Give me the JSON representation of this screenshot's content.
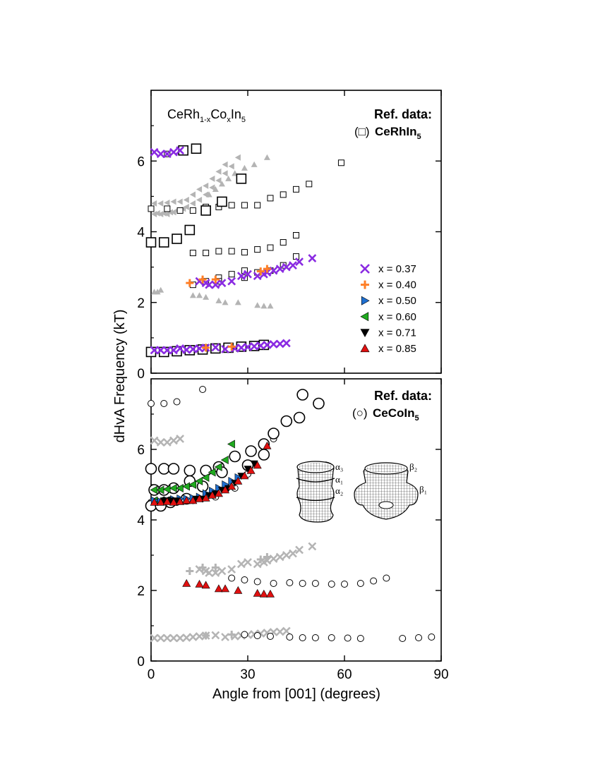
{
  "chart_data": {
    "type": "scatter",
    "xlabel": "Angle from [001] (degrees)",
    "ylabel": "dHvA Frequency (kT)",
    "xlim": [
      0,
      90
    ],
    "ylim": [
      0,
      8
    ],
    "xticks": [
      0,
      30,
      60,
      90
    ],
    "yticks": [
      0,
      2,
      4,
      6
    ],
    "colors": {
      "x037": "#8a2be2",
      "x040": "#ff7f27",
      "x050": "#1f6fd0",
      "x060": "#1faa1f",
      "x071": "#000000",
      "x085": "#e01010",
      "gray": "#b4b4b4",
      "ref": "#000000"
    },
    "legend": [
      {
        "label": "x = 0.37",
        "marker": "x",
        "color_key": "x037"
      },
      {
        "label": "x = 0.40",
        "marker": "plus",
        "color_key": "x040"
      },
      {
        "label": "x = 0.50",
        "marker": "tri-right",
        "color_key": "x050"
      },
      {
        "label": "x = 0.60",
        "marker": "tri-left",
        "color_key": "x060"
      },
      {
        "label": "x = 0.71",
        "marker": "tri-down",
        "color_key": "x071"
      },
      {
        "label": "x = 0.85",
        "marker": "tri-up",
        "color_key": "x085"
      }
    ],
    "top_panel": {
      "compound_label": {
        "base1": "CeRh",
        "sub1": "1-x",
        "base2": "Co",
        "sub2": "x",
        "base3": "In",
        "sub3": "5"
      },
      "ref_title": "Ref. data:",
      "ref_symbol": "(□)",
      "ref_compound": {
        "base": "CeRhIn",
        "sub": "5"
      },
      "ref_points_small": [
        [
          13,
          2.5
        ],
        [
          17,
          2.6
        ],
        [
          21,
          2.7
        ],
        [
          25,
          2.8
        ],
        [
          29,
          2.9
        ],
        [
          33,
          2.85
        ],
        [
          13,
          3.4
        ],
        [
          17,
          3.4
        ],
        [
          21,
          3.45
        ],
        [
          25,
          3.45
        ],
        [
          29,
          3.42
        ],
        [
          33,
          3.5
        ],
        [
          37,
          3.55
        ],
        [
          41,
          3.7
        ],
        [
          45,
          3.9
        ],
        [
          45,
          3.3
        ],
        [
          41,
          3.05
        ],
        [
          37,
          2.9
        ],
        [
          29,
          2.7
        ],
        [
          21,
          2.6
        ],
        [
          0,
          4.65
        ],
        [
          5,
          4.65
        ],
        [
          9,
          4.6
        ],
        [
          13,
          4.6
        ],
        [
          17,
          4.7
        ],
        [
          21,
          4.7
        ],
        [
          25,
          4.75
        ],
        [
          29,
          4.75
        ],
        [
          33,
          4.75
        ],
        [
          37,
          4.95
        ],
        [
          41,
          5.05
        ],
        [
          45,
          5.2
        ],
        [
          49,
          5.35
        ],
        [
          59,
          5.95
        ],
        [
          5,
          6.2
        ]
      ],
      "ref_points_large": [
        [
          0,
          0.6
        ],
        [
          4,
          0.6
        ],
        [
          8,
          0.62
        ],
        [
          12,
          0.65
        ],
        [
          16,
          0.67
        ],
        [
          20,
          0.7
        ],
        [
          24,
          0.72
        ],
        [
          28,
          0.75
        ],
        [
          32,
          0.77
        ],
        [
          35,
          0.8
        ],
        [
          0,
          3.7
        ],
        [
          4,
          3.7
        ],
        [
          8,
          3.8
        ],
        [
          12,
          4.05
        ],
        [
          17,
          4.6
        ],
        [
          22,
          4.85
        ],
        [
          28,
          5.5
        ],
        [
          10,
          6.3
        ],
        [
          14,
          6.35
        ]
      ],
      "x037": [
        [
          1,
          0.65
        ],
        [
          3,
          0.65
        ],
        [
          5,
          0.65
        ],
        [
          7,
          0.65
        ],
        [
          9,
          0.7
        ],
        [
          11,
          0.66
        ],
        [
          13,
          0.68
        ],
        [
          15,
          0.7
        ],
        [
          17,
          0.72
        ],
        [
          20,
          0.73
        ],
        [
          23,
          0.68
        ],
        [
          26,
          0.7
        ],
        [
          28,
          0.72
        ],
        [
          30,
          0.74
        ],
        [
          32,
          0.76
        ],
        [
          34,
          0.78
        ],
        [
          36,
          0.8
        ],
        [
          38,
          0.82
        ],
        [
          40,
          0.83
        ],
        [
          42,
          0.85
        ],
        [
          15,
          2.6
        ],
        [
          17,
          2.55
        ],
        [
          18,
          2.5
        ],
        [
          20,
          2.5
        ],
        [
          22,
          2.55
        ],
        [
          25,
          2.6
        ],
        [
          28,
          2.75
        ],
        [
          30,
          2.8
        ],
        [
          33,
          2.75
        ],
        [
          35,
          2.8
        ],
        [
          36,
          2.85
        ],
        [
          38,
          2.9
        ],
        [
          40,
          2.95
        ],
        [
          42,
          3.0
        ],
        [
          44,
          3.05
        ],
        [
          46,
          3.15
        ],
        [
          50,
          3.25
        ],
        [
          1,
          6.25
        ],
        [
          3,
          6.2
        ],
        [
          5,
          6.2
        ],
        [
          7,
          6.25
        ],
        [
          9,
          6.3
        ]
      ],
      "x040": [
        [
          12,
          2.55
        ],
        [
          16,
          2.65
        ],
        [
          20,
          2.65
        ],
        [
          25,
          0.75
        ],
        [
          34,
          2.88
        ],
        [
          36,
          2.95
        ],
        [
          17,
          0.72
        ]
      ],
      "gray_up": [
        [
          1,
          2.3
        ],
        [
          2,
          2.3
        ],
        [
          3,
          2.35
        ],
        [
          13,
          2.2
        ],
        [
          15,
          2.2
        ],
        [
          17,
          2.15
        ],
        [
          21,
          2.05
        ],
        [
          23,
          2.0
        ],
        [
          27,
          2.0
        ],
        [
          33,
          1.92
        ],
        [
          35,
          1.9
        ],
        [
          37,
          1.9
        ],
        [
          18,
          5.05
        ],
        [
          20,
          5.2
        ],
        [
          22,
          5.35
        ],
        [
          24,
          5.5
        ],
        [
          26,
          5.65
        ],
        [
          29,
          5.8
        ],
        [
          32,
          5.9
        ],
        [
          36,
          6.1
        ]
      ],
      "gray_left": [
        [
          1,
          4.5
        ],
        [
          2,
          4.52
        ],
        [
          3,
          4.5
        ],
        [
          4,
          4.52
        ],
        [
          5,
          4.5
        ],
        [
          6,
          4.55
        ],
        [
          7,
          4.55
        ],
        [
          8,
          4.6
        ],
        [
          9,
          4.62
        ],
        [
          10,
          4.65
        ],
        [
          11,
          4.7
        ],
        [
          13,
          4.8
        ],
        [
          15,
          4.9
        ],
        [
          17,
          5.05
        ],
        [
          19,
          5.25
        ],
        [
          21,
          5.45
        ],
        [
          23,
          5.65
        ],
        [
          25,
          5.85
        ],
        [
          27,
          6.1
        ],
        [
          1,
          4.8
        ],
        [
          3,
          4.8
        ],
        [
          5,
          4.82
        ],
        [
          7,
          4.85
        ],
        [
          9,
          4.85
        ],
        [
          11,
          4.9
        ],
        [
          13,
          5.05
        ],
        [
          15,
          5.2
        ],
        [
          17,
          5.3
        ],
        [
          19,
          5.5
        ],
        [
          21,
          5.7
        ],
        [
          23,
          5.9
        ]
      ]
    },
    "bottom_panel": {
      "ref_title": "Ref. data:",
      "ref_symbol": "(○)",
      "ref_compound": {
        "base": "CeCoIn",
        "sub": "5"
      },
      "fs_labels": {
        "a3": "α₃",
        "a1": "α₁",
        "a2": "α₂",
        "b2": "β₂",
        "b1": "β₁"
      },
      "ref_circles_small": [
        [
          0,
          7.3
        ],
        [
          4,
          7.3
        ],
        [
          8,
          7.35
        ],
        [
          16,
          7.7
        ],
        [
          0,
          4.5
        ],
        [
          2,
          4.48
        ],
        [
          4,
          4.5
        ],
        [
          6,
          4.45
        ],
        [
          8,
          4.5
        ],
        [
          13,
          4.55
        ],
        [
          20,
          4.65
        ],
        [
          26,
          4.9
        ],
        [
          30,
          5.3
        ],
        [
          38,
          6.3
        ],
        [
          29,
          2.3
        ],
        [
          33,
          2.25
        ],
        [
          38,
          2.2
        ],
        [
          43,
          2.22
        ],
        [
          47,
          2.2
        ],
        [
          51,
          2.2
        ],
        [
          56,
          2.18
        ],
        [
          60,
          2.18
        ],
        [
          65,
          2.2
        ],
        [
          69,
          2.27
        ],
        [
          73,
          2.35
        ],
        [
          29,
          0.75
        ],
        [
          33,
          0.72
        ],
        [
          37,
          0.7
        ],
        [
          43,
          0.68
        ],
        [
          47,
          0.66
        ],
        [
          51,
          0.66
        ],
        [
          56,
          0.66
        ],
        [
          61,
          0.65
        ],
        [
          65,
          0.64
        ],
        [
          78,
          0.64
        ],
        [
          83,
          0.66
        ],
        [
          87,
          0.68
        ],
        [
          25,
          2.35
        ]
      ],
      "ref_circles_large": [
        [
          0,
          5.45
        ],
        [
          4,
          5.45
        ],
        [
          7,
          5.45
        ],
        [
          12,
          5.4
        ],
        [
          17,
          5.4
        ],
        [
          21,
          5.5
        ],
        [
          26,
          5.8
        ],
        [
          31,
          5.95
        ],
        [
          35,
          6.15
        ],
        [
          38,
          6.45
        ],
        [
          42,
          6.8
        ],
        [
          46,
          6.9
        ],
        [
          47,
          7.55
        ],
        [
          52,
          7.3
        ],
        [
          1,
          4.85
        ],
        [
          4,
          4.85
        ],
        [
          7,
          4.9
        ],
        [
          12,
          5.1
        ],
        [
          0,
          4.4
        ],
        [
          3,
          4.4
        ],
        [
          6,
          4.5
        ],
        [
          11,
          4.6
        ],
        [
          16,
          4.95
        ],
        [
          22,
          5.35
        ],
        [
          30,
          5.55
        ],
        [
          35,
          5.85
        ]
      ],
      "x060": [
        [
          1,
          4.85
        ],
        [
          3,
          4.85
        ],
        [
          5,
          4.87
        ],
        [
          7,
          4.9
        ],
        [
          9,
          4.9
        ],
        [
          11,
          4.95
        ],
        [
          13,
          5.0
        ],
        [
          15,
          5.1
        ],
        [
          17,
          5.2
        ],
        [
          19,
          5.35
        ],
        [
          21,
          5.5
        ],
        [
          23,
          5.7
        ],
        [
          25,
          6.15
        ],
        [
          5,
          4.55
        ],
        [
          3,
          4.55
        ],
        [
          1,
          4.55
        ]
      ],
      "x050": [
        [
          1,
          4.55
        ],
        [
          3,
          4.52
        ],
        [
          5,
          4.55
        ],
        [
          7,
          4.58
        ],
        [
          9,
          4.6
        ],
        [
          11,
          4.6
        ],
        [
          13,
          4.62
        ],
        [
          15,
          4.65
        ],
        [
          17,
          4.75
        ],
        [
          19,
          4.82
        ],
        [
          21,
          4.9
        ],
        [
          23,
          5.0
        ],
        [
          25,
          5.1
        ],
        [
          27,
          5.2
        ]
      ],
      "x071": [
        [
          4,
          4.55
        ],
        [
          6,
          4.55
        ],
        [
          8,
          4.55
        ],
        [
          14,
          4.6
        ],
        [
          16,
          4.6
        ],
        [
          18,
          4.7
        ],
        [
          20,
          4.75
        ],
        [
          22,
          4.85
        ],
        [
          24,
          4.9
        ],
        [
          26,
          5.05
        ],
        [
          28,
          5.25
        ],
        [
          30,
          5.45
        ],
        [
          32,
          5.6
        ]
      ],
      "x085": [
        [
          1,
          4.5
        ],
        [
          3,
          4.5
        ],
        [
          5,
          4.52
        ],
        [
          7,
          4.5
        ],
        [
          9,
          4.52
        ],
        [
          11,
          4.55
        ],
        [
          13,
          4.55
        ],
        [
          15,
          4.6
        ],
        [
          17,
          4.62
        ],
        [
          19,
          4.7
        ],
        [
          21,
          4.75
        ],
        [
          23,
          4.85
        ],
        [
          25,
          4.95
        ],
        [
          27,
          5.1
        ],
        [
          29,
          5.25
        ],
        [
          31,
          5.4
        ],
        [
          33,
          5.55
        ],
        [
          36,
          6.1
        ],
        [
          11,
          2.2
        ],
        [
          15,
          2.18
        ],
        [
          17,
          2.15
        ],
        [
          21,
          2.05
        ],
        [
          23,
          2.05
        ],
        [
          27,
          2.0
        ],
        [
          33,
          1.92
        ],
        [
          35,
          1.9
        ],
        [
          37,
          1.9
        ]
      ],
      "gray_x": [
        [
          1,
          0.65
        ],
        [
          3,
          0.65
        ],
        [
          5,
          0.65
        ],
        [
          7,
          0.65
        ],
        [
          9,
          0.65
        ],
        [
          11,
          0.66
        ],
        [
          13,
          0.68
        ],
        [
          15,
          0.7
        ],
        [
          17,
          0.72
        ],
        [
          20,
          0.73
        ],
        [
          23,
          0.68
        ],
        [
          26,
          0.7
        ],
        [
          28,
          0.72
        ],
        [
          30,
          0.74
        ],
        [
          32,
          0.76
        ],
        [
          34,
          0.78
        ],
        [
          36,
          0.8
        ],
        [
          38,
          0.82
        ],
        [
          40,
          0.83
        ],
        [
          42,
          0.85
        ],
        [
          15,
          2.6
        ],
        [
          17,
          2.55
        ],
        [
          18,
          2.5
        ],
        [
          20,
          2.5
        ],
        [
          22,
          2.55
        ],
        [
          25,
          2.6
        ],
        [
          28,
          2.75
        ],
        [
          30,
          2.8
        ],
        [
          33,
          2.75
        ],
        [
          35,
          2.8
        ],
        [
          36,
          2.85
        ],
        [
          38,
          2.9
        ],
        [
          40,
          2.95
        ],
        [
          42,
          3.0
        ],
        [
          44,
          3.05
        ],
        [
          46,
          3.15
        ],
        [
          50,
          3.25
        ],
        [
          1,
          6.25
        ],
        [
          3,
          6.2
        ],
        [
          5,
          6.2
        ],
        [
          7,
          6.25
        ],
        [
          9,
          6.3
        ]
      ],
      "gray_plus": [
        [
          12,
          2.55
        ],
        [
          16,
          2.65
        ],
        [
          20,
          2.65
        ],
        [
          25,
          0.75
        ],
        [
          34,
          2.88
        ],
        [
          36,
          2.95
        ],
        [
          17,
          0.72
        ]
      ]
    }
  }
}
